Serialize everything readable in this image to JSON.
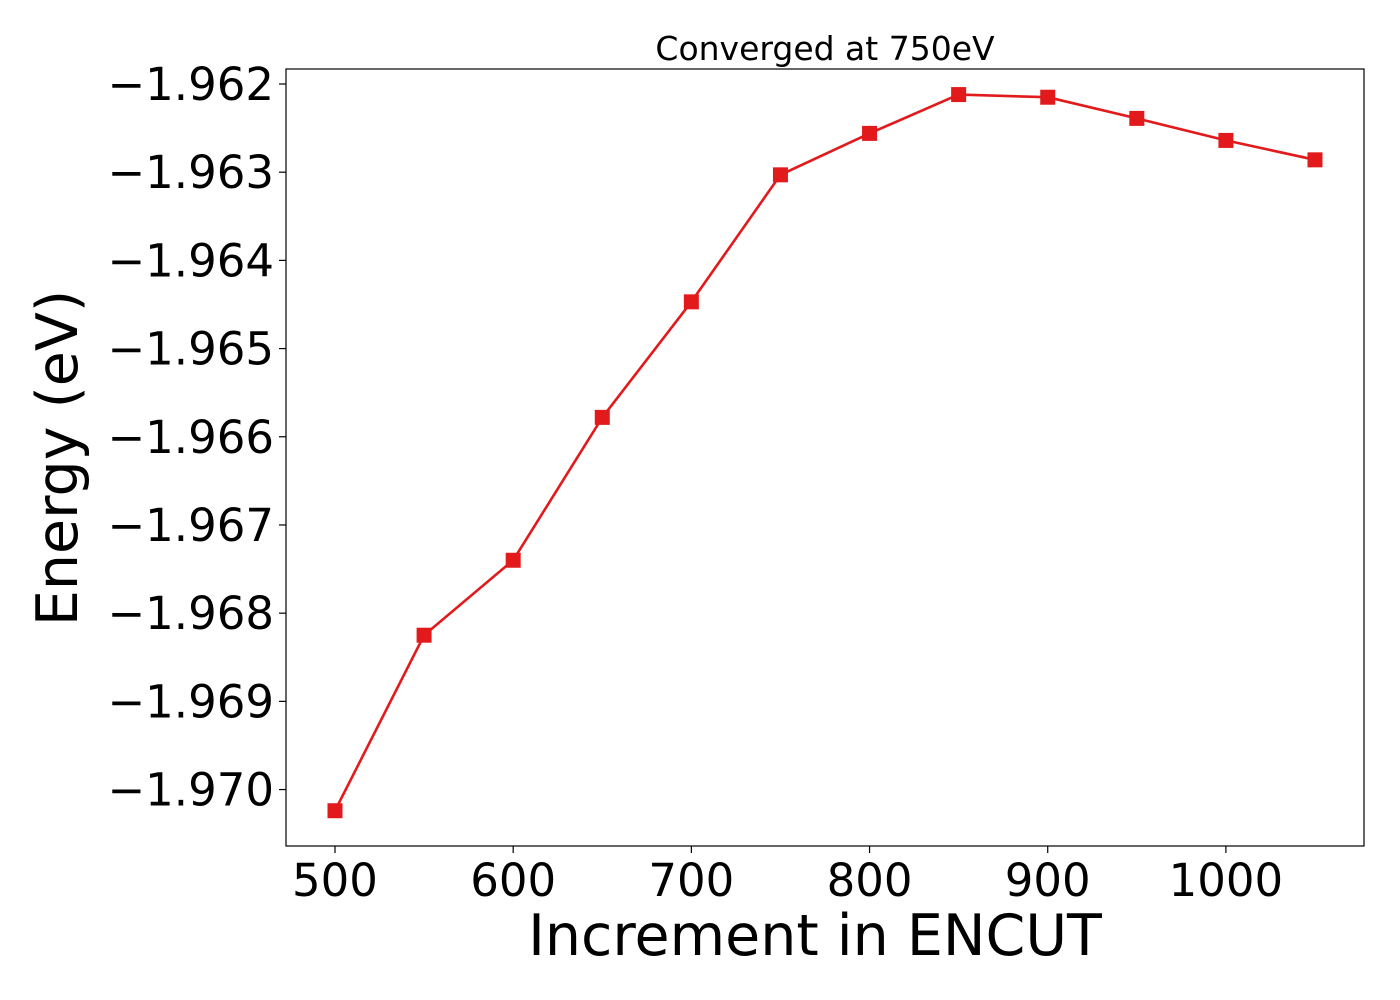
{
  "chart_data": {
    "type": "line",
    "title": "Converged at 750eV",
    "xlabel": "Increment in ENCUT",
    "ylabel": "Energy (eV)",
    "xlim": [
      472.5,
      1077.5
    ],
    "ylim": [
      -1.97064,
      -1.96183
    ],
    "xticks": [
      500,
      600,
      700,
      800,
      900,
      1000
    ],
    "xtick_labels": [
      "500",
      "600",
      "700",
      "800",
      "900",
      "1000"
    ],
    "yticks": [
      -1.97,
      -1.969,
      -1.968,
      -1.967,
      -1.966,
      -1.965,
      -1.964,
      -1.963,
      -1.962
    ],
    "ytick_labels": [
      "−1.970",
      "−1.969",
      "−1.968",
      "−1.967",
      "−1.966",
      "−1.965",
      "−1.964",
      "−1.963",
      "−1.962"
    ],
    "grid": false,
    "series": [
      {
        "color": "#e31a1c",
        "marker": "square",
        "x": [
          500,
          550,
          600,
          650,
          700,
          750,
          800,
          850,
          900,
          950,
          1000,
          1050
        ],
        "y": [
          -1.97024,
          -1.96825,
          -1.9674,
          -1.96578,
          -1.96447,
          -1.96303,
          -1.96256,
          -1.96212,
          -1.96215,
          -1.96239,
          -1.96264,
          -1.96286
        ]
      }
    ]
  }
}
